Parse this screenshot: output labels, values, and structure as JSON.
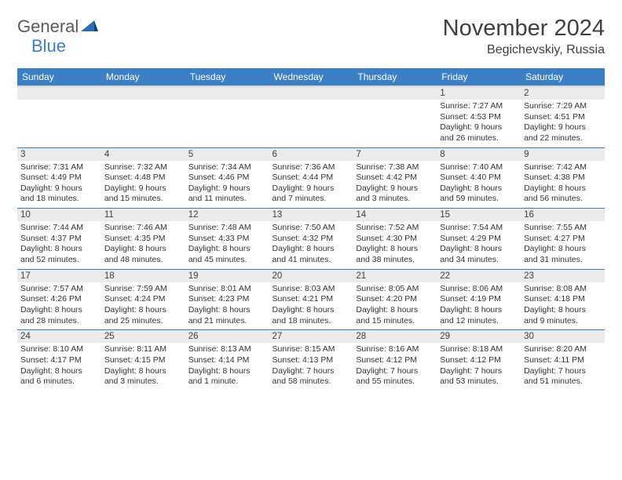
{
  "logo": {
    "word1": "General",
    "word2": "Blue"
  },
  "title": "November 2024",
  "location": "Begichevskiy, Russia",
  "header_bg": "#3b7fc4",
  "weekdays": [
    "Sunday",
    "Monday",
    "Tuesday",
    "Wednesday",
    "Thursday",
    "Friday",
    "Saturday"
  ],
  "days": {
    "1": {
      "sr": "7:27 AM",
      "ss": "4:53 PM",
      "dl": "9 hours and 26 minutes."
    },
    "2": {
      "sr": "7:29 AM",
      "ss": "4:51 PM",
      "dl": "9 hours and 22 minutes."
    },
    "3": {
      "sr": "7:31 AM",
      "ss": "4:49 PM",
      "dl": "9 hours and 18 minutes."
    },
    "4": {
      "sr": "7:32 AM",
      "ss": "4:48 PM",
      "dl": "9 hours and 15 minutes."
    },
    "5": {
      "sr": "7:34 AM",
      "ss": "4:46 PM",
      "dl": "9 hours and 11 minutes."
    },
    "6": {
      "sr": "7:36 AM",
      "ss": "4:44 PM",
      "dl": "9 hours and 7 minutes."
    },
    "7": {
      "sr": "7:38 AM",
      "ss": "4:42 PM",
      "dl": "9 hours and 3 minutes."
    },
    "8": {
      "sr": "7:40 AM",
      "ss": "4:40 PM",
      "dl": "8 hours and 59 minutes."
    },
    "9": {
      "sr": "7:42 AM",
      "ss": "4:38 PM",
      "dl": "8 hours and 56 minutes."
    },
    "10": {
      "sr": "7:44 AM",
      "ss": "4:37 PM",
      "dl": "8 hours and 52 minutes."
    },
    "11": {
      "sr": "7:46 AM",
      "ss": "4:35 PM",
      "dl": "8 hours and 48 minutes."
    },
    "12": {
      "sr": "7:48 AM",
      "ss": "4:33 PM",
      "dl": "8 hours and 45 minutes."
    },
    "13": {
      "sr": "7:50 AM",
      "ss": "4:32 PM",
      "dl": "8 hours and 41 minutes."
    },
    "14": {
      "sr": "7:52 AM",
      "ss": "4:30 PM",
      "dl": "8 hours and 38 minutes."
    },
    "15": {
      "sr": "7:54 AM",
      "ss": "4:29 PM",
      "dl": "8 hours and 34 minutes."
    },
    "16": {
      "sr": "7:55 AM",
      "ss": "4:27 PM",
      "dl": "8 hours and 31 minutes."
    },
    "17": {
      "sr": "7:57 AM",
      "ss": "4:26 PM",
      "dl": "8 hours and 28 minutes."
    },
    "18": {
      "sr": "7:59 AM",
      "ss": "4:24 PM",
      "dl": "8 hours and 25 minutes."
    },
    "19": {
      "sr": "8:01 AM",
      "ss": "4:23 PM",
      "dl": "8 hours and 21 minutes."
    },
    "20": {
      "sr": "8:03 AM",
      "ss": "4:21 PM",
      "dl": "8 hours and 18 minutes."
    },
    "21": {
      "sr": "8:05 AM",
      "ss": "4:20 PM",
      "dl": "8 hours and 15 minutes."
    },
    "22": {
      "sr": "8:06 AM",
      "ss": "4:19 PM",
      "dl": "8 hours and 12 minutes."
    },
    "23": {
      "sr": "8:08 AM",
      "ss": "4:18 PM",
      "dl": "8 hours and 9 minutes."
    },
    "24": {
      "sr": "8:10 AM",
      "ss": "4:17 PM",
      "dl": "8 hours and 6 minutes."
    },
    "25": {
      "sr": "8:11 AM",
      "ss": "4:15 PM",
      "dl": "8 hours and 3 minutes."
    },
    "26": {
      "sr": "8:13 AM",
      "ss": "4:14 PM",
      "dl": "8 hours and 1 minute."
    },
    "27": {
      "sr": "8:15 AM",
      "ss": "4:13 PM",
      "dl": "7 hours and 58 minutes."
    },
    "28": {
      "sr": "8:16 AM",
      "ss": "4:12 PM",
      "dl": "7 hours and 55 minutes."
    },
    "29": {
      "sr": "8:18 AM",
      "ss": "4:12 PM",
      "dl": "7 hours and 53 minutes."
    },
    "30": {
      "sr": "8:20 AM",
      "ss": "4:11 PM",
      "dl": "7 hours and 51 minutes."
    }
  },
  "layout": {
    "first_weekday_index": 5,
    "num_days": 30
  },
  "labels": {
    "sunrise": "Sunrise:",
    "sunset": "Sunset:",
    "daylight": "Daylight:"
  }
}
